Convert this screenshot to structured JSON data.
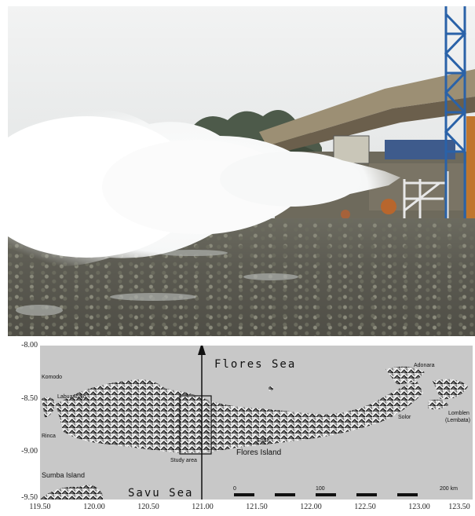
{
  "map": {
    "y_ticks": [
      "-8.00",
      "-8.50",
      "-9.00",
      "-9.50"
    ],
    "x_ticks": [
      "119.50",
      "120.00",
      "120.50",
      "121.00",
      "121.50",
      "122.00",
      "122.50",
      "123.00",
      "123.50"
    ],
    "labels": {
      "flores_sea": "Flores Sea",
      "savu_sea": "Savu Sea",
      "flores_island": "Flores Island",
      "sumba_island": "Sumba Island",
      "study_area": "Study area",
      "komodo": "Komodo",
      "rinca": "Rinca",
      "labuanbajo": "Labuanbajo",
      "adonara": "Adonara",
      "solor": "Solor",
      "lomblen": "Lomblen",
      "lomblen_sub": "(Lembata)",
      "ende": "Ende"
    },
    "scale": {
      "start": "0",
      "mid": "100",
      "end": "200 km"
    },
    "colors": {
      "background": "#c8c8c8",
      "relief_light": "#ffffff",
      "relief_dark": "#2a2a2a"
    }
  }
}
